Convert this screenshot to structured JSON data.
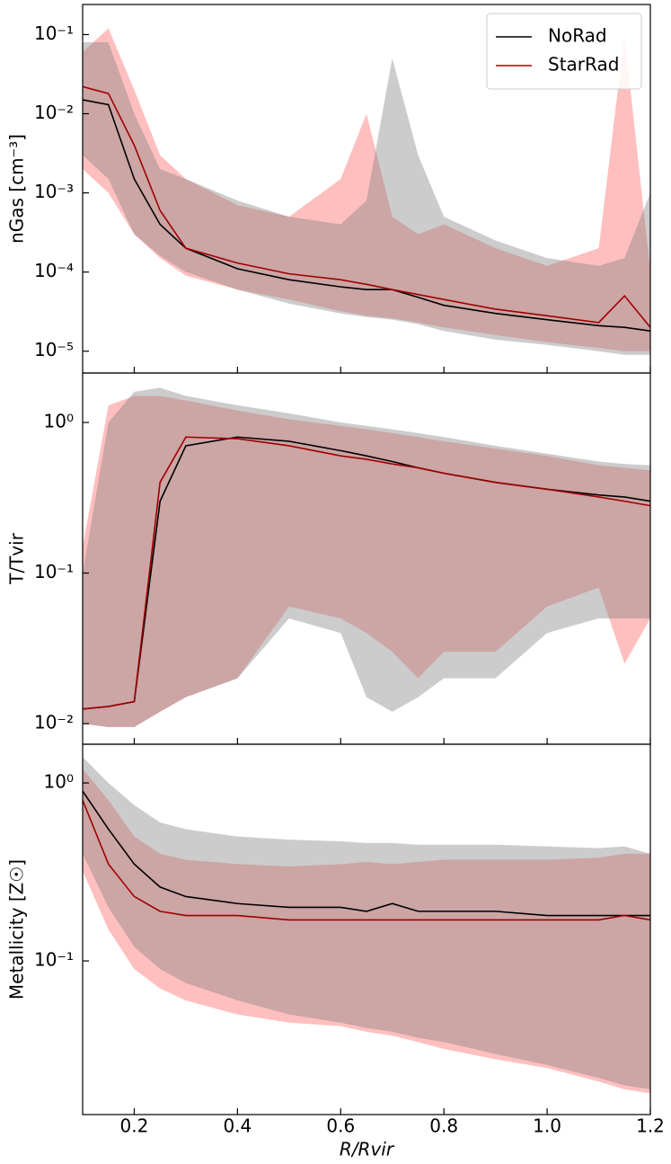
{
  "chart_data": [
    {
      "type": "band-line",
      "log": true,
      "ylabel": "nGas [cm⁻³]",
      "legend": "upper right",
      "x": [
        0.1,
        0.15,
        0.2,
        0.25,
        0.3,
        0.4,
        0.5,
        0.6,
        0.65,
        0.7,
        0.75,
        0.8,
        0.9,
        1.0,
        1.1,
        1.15,
        1.2
      ],
      "xlim": [
        0.1,
        1.2
      ],
      "ylim": [
        5.3e-06,
        0.24
      ],
      "yticks": [
        {
          "value": 0.1,
          "label": "10⁻¹"
        },
        {
          "value": 0.01,
          "label": "10⁻²"
        },
        {
          "value": 0.001,
          "label": "10⁻³"
        },
        {
          "value": 0.0001,
          "label": "10⁻⁴"
        },
        {
          "value": 1e-05,
          "label": "10⁻⁵"
        }
      ],
      "series": [
        {
          "name": "NoRad",
          "color": "#000000",
          "band_color": "#808080",
          "values": [
            0.015,
            0.013,
            0.0015,
            0.0004,
            0.0002,
            0.00011,
            8e-05,
            6.5e-05,
            6e-05,
            6e-05,
            4.8e-05,
            3.8e-05,
            3e-05,
            2.5e-05,
            2.1e-05,
            2e-05,
            1.8e-05
          ],
          "lower": [
            0.003,
            0.0015,
            0.0003,
            0.00016,
            0.0001,
            6e-05,
            4e-05,
            3e-05,
            2.7e-05,
            2.5e-05,
            2.2e-05,
            1.8e-05,
            1.4e-05,
            1.2e-05,
            1e-05,
            9e-06,
            9e-06
          ],
          "upper": [
            0.08,
            0.08,
            0.01,
            0.002,
            0.0015,
            0.0008,
            0.0005,
            0.0004,
            0.0008,
            0.05,
            0.003,
            0.0005,
            0.00025,
            0.00015,
            0.00012,
            0.00015,
            0.001
          ]
        },
        {
          "name": "StarRad",
          "color": "#a00000",
          "band_color": "#ff0000",
          "values": [
            0.022,
            0.018,
            0.004,
            0.0006,
            0.0002,
            0.00013,
            9.5e-05,
            8e-05,
            7e-05,
            6e-05,
            5.2e-05,
            4.5e-05,
            3.4e-05,
            2.8e-05,
            2.3e-05,
            5e-05,
            2e-05
          ],
          "lower": [
            0.002,
            0.001,
            0.0003,
            0.00015,
            9e-05,
            6e-05,
            4.5e-05,
            3.2e-05,
            2.8e-05,
            2.6e-05,
            2.3e-05,
            2e-05,
            1.6e-05,
            1.3e-05,
            1.1e-05,
            1e-05,
            1e-05
          ],
          "upper": [
            0.06,
            0.12,
            0.02,
            0.003,
            0.0015,
            0.0007,
            0.0005,
            0.0015,
            0.01,
            0.0005,
            0.0003,
            0.0004,
            0.0002,
            0.00012,
            0.0002,
            0.1,
            0.0001
          ]
        }
      ]
    },
    {
      "type": "band-line",
      "log": true,
      "ylabel": "T/Tvir",
      "x": [
        0.1,
        0.15,
        0.2,
        0.25,
        0.3,
        0.4,
        0.5,
        0.6,
        0.65,
        0.7,
        0.75,
        0.8,
        0.9,
        1.0,
        1.1,
        1.15,
        1.2
      ],
      "xlim": [
        0.1,
        1.2
      ],
      "ylim": [
        0.0073,
        2.13
      ],
      "yticks": [
        {
          "value": 1,
          "label": "10⁰"
        },
        {
          "value": 0.1,
          "label": "10⁻¹"
        },
        {
          "value": 0.01,
          "label": "10⁻²"
        }
      ],
      "series": [
        {
          "color": "#000000",
          "band_color": "#808080",
          "values": [
            0.0125,
            0.013,
            0.014,
            0.3,
            0.7,
            0.8,
            0.75,
            0.65,
            0.6,
            0.55,
            0.5,
            0.46,
            0.4,
            0.36,
            0.33,
            0.32,
            0.3
          ],
          "lower": [
            0.01,
            0.0095,
            0.0095,
            0.012,
            0.015,
            0.02,
            0.05,
            0.04,
            0.015,
            0.012,
            0.015,
            0.02,
            0.02,
            0.04,
            0.05,
            0.05,
            0.05
          ],
          "upper": [
            0.1,
            1.0,
            1.6,
            1.7,
            1.5,
            1.3,
            1.15,
            1.0,
            0.95,
            0.9,
            0.85,
            0.8,
            0.7,
            0.62,
            0.55,
            0.53,
            0.52
          ]
        },
        {
          "color": "#a00000",
          "band_color": "#ff0000",
          "values": [
            0.0125,
            0.013,
            0.014,
            0.4,
            0.8,
            0.78,
            0.7,
            0.6,
            0.57,
            0.53,
            0.5,
            0.46,
            0.4,
            0.36,
            0.32,
            0.3,
            0.28
          ],
          "lower": [
            0.01,
            0.0095,
            0.0095,
            0.012,
            0.015,
            0.02,
            0.06,
            0.05,
            0.04,
            0.03,
            0.02,
            0.03,
            0.03,
            0.06,
            0.08,
            0.025,
            0.05
          ],
          "upper": [
            0.15,
            1.3,
            1.5,
            1.5,
            1.4,
            1.2,
            1.05,
            0.95,
            0.9,
            0.85,
            0.8,
            0.75,
            0.67,
            0.6,
            0.52,
            0.5,
            0.48
          ]
        }
      ]
    },
    {
      "type": "band-line",
      "log": true,
      "ylabel": "Metallicity [Z☉]",
      "xlabel": "R/Rvir",
      "x": [
        0.1,
        0.15,
        0.2,
        0.25,
        0.3,
        0.4,
        0.5,
        0.6,
        0.65,
        0.7,
        0.75,
        0.8,
        0.9,
        1.0,
        1.1,
        1.15,
        1.2
      ],
      "xlim": [
        0.1,
        1.2
      ],
      "ylim": [
        0.0137,
        1.65
      ],
      "xticks": [
        0.2,
        0.4,
        0.6,
        0.8,
        {
          "value": 1,
          "label": "1.0"
        },
        1.2
      ],
      "yticks": [
        {
          "value": 1,
          "label": "10⁰"
        },
        {
          "value": 0.1,
          "label": "10⁻¹"
        }
      ],
      "series": [
        {
          "color": "#000000",
          "band_color": "#808080",
          "values": [
            0.9,
            0.55,
            0.35,
            0.26,
            0.23,
            0.21,
            0.2,
            0.2,
            0.19,
            0.21,
            0.19,
            0.19,
            0.19,
            0.18,
            0.18,
            0.18,
            0.18
          ],
          "lower": [
            0.4,
            0.2,
            0.12,
            0.09,
            0.075,
            0.06,
            0.05,
            0.045,
            0.042,
            0.04,
            0.037,
            0.035,
            0.03,
            0.026,
            0.022,
            0.02,
            0.019
          ],
          "upper": [
            1.4,
            1.0,
            0.75,
            0.6,
            0.55,
            0.5,
            0.48,
            0.47,
            0.46,
            0.46,
            0.45,
            0.45,
            0.45,
            0.44,
            0.43,
            0.44,
            0.4
          ]
        },
        {
          "color": "#a00000",
          "band_color": "#ff0000",
          "values": [
            0.8,
            0.35,
            0.23,
            0.19,
            0.18,
            0.18,
            0.17,
            0.17,
            0.17,
            0.17,
            0.17,
            0.17,
            0.17,
            0.17,
            0.17,
            0.18,
            0.17
          ],
          "lower": [
            0.32,
            0.15,
            0.09,
            0.07,
            0.06,
            0.05,
            0.045,
            0.043,
            0.04,
            0.038,
            0.035,
            0.032,
            0.028,
            0.025,
            0.021,
            0.019,
            0.018
          ],
          "upper": [
            1.2,
            0.8,
            0.5,
            0.4,
            0.37,
            0.35,
            0.34,
            0.35,
            0.36,
            0.35,
            0.36,
            0.37,
            0.37,
            0.37,
            0.38,
            0.4,
            0.4
          ]
        }
      ]
    }
  ]
}
